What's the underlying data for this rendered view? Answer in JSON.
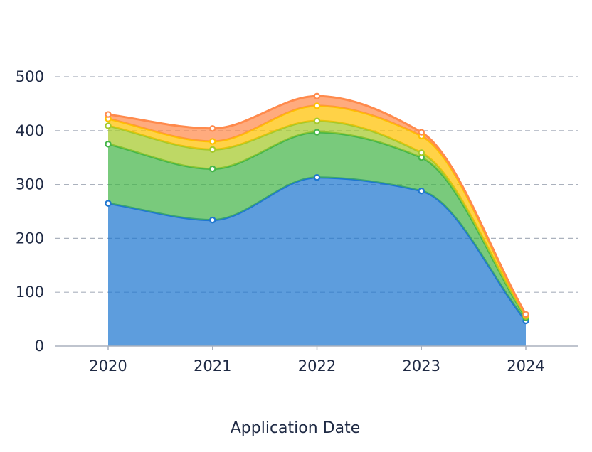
{
  "chart_data": {
    "type": "area",
    "stacked": true,
    "categories": [
      "2020",
      "2021",
      "2022",
      "2023",
      "2024"
    ],
    "series": [
      {
        "values": [
          265,
          234,
          313,
          288,
          47
        ],
        "color": "#1f77d0"
      },
      {
        "values": [
          110,
          95,
          84,
          62,
          6
        ],
        "color": "#45b649"
      },
      {
        "values": [
          34,
          36,
          21,
          9,
          2
        ],
        "color": "#a5c92a"
      },
      {
        "values": [
          13,
          15,
          28,
          31,
          2
        ],
        "color": "#ffc000"
      },
      {
        "values": [
          8,
          24,
          18,
          7,
          2
        ],
        "color": "#ff8a4c"
      }
    ],
    "xlabel": "Application Date",
    "ylabel": "",
    "yticks": [
      0,
      100,
      200,
      300,
      400,
      500
    ],
    "ylim": [
      0,
      500
    ],
    "grid": true,
    "smooth": true
  }
}
